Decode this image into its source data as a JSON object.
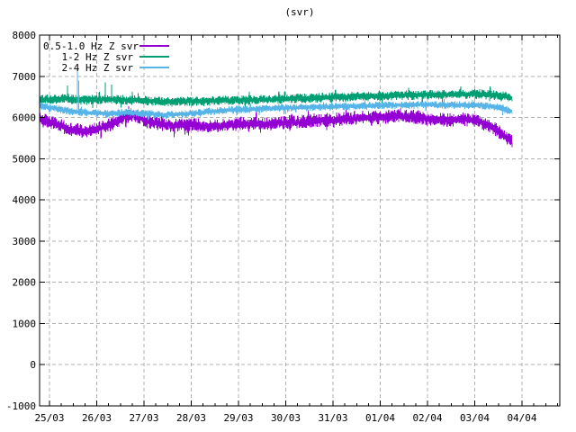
{
  "window": {
    "background": "#ffffff"
  },
  "chart_data": {
    "type": "line",
    "title": "(svr)",
    "xlabel": "",
    "ylabel": "",
    "ylim": [
      -1000,
      8000
    ],
    "y_tick_step": 1000,
    "y_tick_labels": [
      "-1000",
      "0",
      "1000",
      "2000",
      "3000",
      "4000",
      "5000",
      "6000",
      "7000",
      "8000"
    ],
    "x_tick_labels": [
      "25/03",
      "26/03",
      "27/03",
      "28/03",
      "29/03",
      "30/03",
      "31/03",
      "01/04",
      "02/04",
      "03/04",
      "04/04"
    ],
    "x_minor_per_day": 4,
    "x_range_days": [
      -0.21,
      10.8
    ],
    "data_day_range": [
      -0.21,
      9.79
    ],
    "grid": true,
    "grid_color": "#b0b0b0",
    "axis_color": "#000000",
    "legend_position": "top-left",
    "series": [
      {
        "name": "0.5-1.0 Hz Z svr",
        "color": "#9400D3",
        "noise": 170,
        "anchors": [
          [
            -0.21,
            5950
          ],
          [
            0.1,
            5870
          ],
          [
            0.4,
            5720
          ],
          [
            0.7,
            5670
          ],
          [
            1.0,
            5720
          ],
          [
            1.3,
            5830
          ],
          [
            1.6,
            6030
          ],
          [
            1.8,
            6060
          ],
          [
            2.0,
            5950
          ],
          [
            2.2,
            5870
          ],
          [
            2.6,
            5800
          ],
          [
            3.0,
            5830
          ],
          [
            3.4,
            5790
          ],
          [
            3.8,
            5820
          ],
          [
            4.2,
            5860
          ],
          [
            4.6,
            5840
          ],
          [
            5.0,
            5880
          ],
          [
            5.4,
            5900
          ],
          [
            5.8,
            5930
          ],
          [
            6.2,
            5960
          ],
          [
            6.6,
            5990
          ],
          [
            7.0,
            6000
          ],
          [
            7.4,
            6050
          ],
          [
            7.6,
            6040
          ],
          [
            8.0,
            5970
          ],
          [
            8.4,
            5940
          ],
          [
            8.8,
            5960
          ],
          [
            9.1,
            5900
          ],
          [
            9.4,
            5750
          ],
          [
            9.6,
            5570
          ],
          [
            9.79,
            5430
          ]
        ],
        "spikes": []
      },
      {
        "name": "1-2 Hz Z svr",
        "color": "#009E73",
        "noise": 120,
        "anchors": [
          [
            -0.21,
            6430
          ],
          [
            0.3,
            6450
          ],
          [
            0.8,
            6420
          ],
          [
            1.2,
            6440
          ],
          [
            1.6,
            6430
          ],
          [
            2.0,
            6410
          ],
          [
            2.5,
            6380
          ],
          [
            3.0,
            6400
          ],
          [
            3.5,
            6410
          ],
          [
            4.0,
            6420
          ],
          [
            4.5,
            6430
          ],
          [
            5.0,
            6450
          ],
          [
            5.5,
            6470
          ],
          [
            6.0,
            6490
          ],
          [
            6.5,
            6510
          ],
          [
            7.0,
            6520
          ],
          [
            7.5,
            6540
          ],
          [
            8.0,
            6550
          ],
          [
            8.5,
            6560
          ],
          [
            9.0,
            6570
          ],
          [
            9.3,
            6560
          ],
          [
            9.6,
            6530
          ],
          [
            9.79,
            6470
          ]
        ],
        "spikes": [
          [
            0.38,
            6780
          ],
          [
            1.18,
            6850
          ],
          [
            1.31,
            6800
          ]
        ]
      },
      {
        "name": "2-4 Hz Z svr",
        "color": "#56B4E9",
        "noise": 95,
        "anchors": [
          [
            -0.21,
            6280
          ],
          [
            0.2,
            6200
          ],
          [
            0.5,
            6140
          ],
          [
            0.9,
            6110
          ],
          [
            1.3,
            6100
          ],
          [
            1.7,
            6120
          ],
          [
            2.1,
            6090
          ],
          [
            2.5,
            6060
          ],
          [
            3.0,
            6100
          ],
          [
            3.5,
            6150
          ],
          [
            4.0,
            6190
          ],
          [
            4.5,
            6210
          ],
          [
            5.0,
            6230
          ],
          [
            5.5,
            6250
          ],
          [
            6.0,
            6260
          ],
          [
            6.5,
            6280
          ],
          [
            7.0,
            6290
          ],
          [
            7.5,
            6300
          ],
          [
            8.0,
            6310
          ],
          [
            8.5,
            6300
          ],
          [
            9.0,
            6300
          ],
          [
            9.4,
            6270
          ],
          [
            9.6,
            6210
          ],
          [
            9.79,
            6140
          ]
        ],
        "spikes": [
          [
            0.59,
            7160
          ],
          [
            0.62,
            6900
          ]
        ]
      }
    ]
  }
}
